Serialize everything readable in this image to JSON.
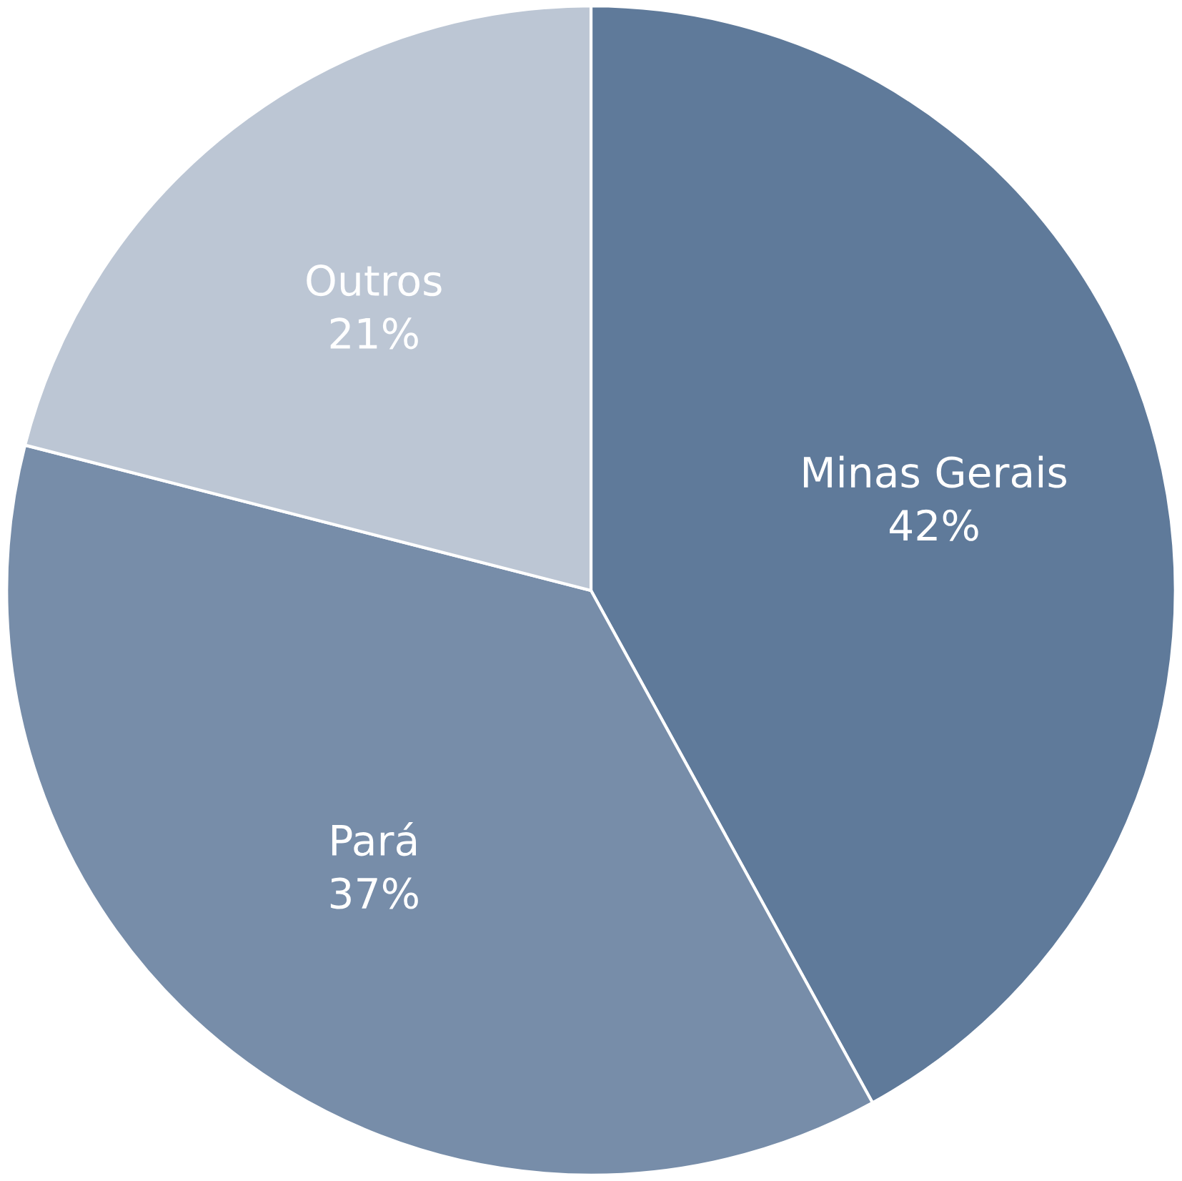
{
  "chart_data": {
    "type": "pie",
    "categories": [
      "Minas Gerais",
      "Pará",
      "Outros"
    ],
    "values": [
      42,
      37,
      21
    ],
    "value_labels": [
      "42%",
      "37%",
      "21%"
    ],
    "colors": [
      "#5f7a9a",
      "#778da9",
      "#bcc6d4"
    ],
    "legend": false
  }
}
